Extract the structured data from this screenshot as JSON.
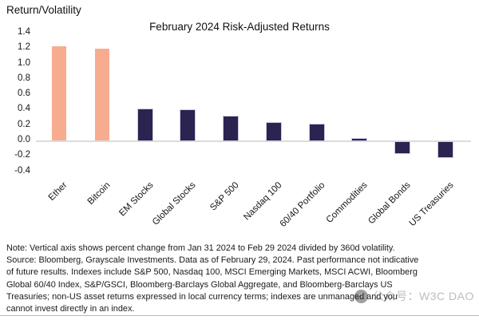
{
  "page": {
    "watermark_text": "公众号：W3C DAO",
    "note_lines": [
      "Note: Vertical axis shows percent change from Jan 31 2024 to Feb 29 2024 divided by 360d volatility.",
      "Source: Bloomberg, Grayscale Investments. Data as of February 29, 2024. Past performance not indicative",
      "of future results. Indexes include S&P 500, Nasdaq 100, MSCI Emerging Markets, MSCI ACWI, Bloomberg",
      "Global 60/40 Index, S&P/GSCI, Bloomberg-Barclays Global Aggregate, and Bloomberg-Barclays US",
      "Treasuries; non-US asset returns expressed in local currency terms; indexes are unmanaged and you",
      "cannot invest directly in an index."
    ]
  },
  "chart_data": {
    "type": "bar",
    "title": "February 2024 Risk-Adjusted Returns",
    "ylabel": "Return/Volatility",
    "xlabel": "",
    "ylim": [
      -0.4,
      1.4
    ],
    "ytick_step": 0.2,
    "grid": "off",
    "legend": "none",
    "categories": [
      "Ether",
      "Bitcoin",
      "EM Stocks",
      "Global Stocks",
      "S&P 500",
      "Nasdaq 100",
      "60/40 Portfolio",
      "Commodities",
      "Global Bonds",
      "US Treasuries"
    ],
    "values": [
      1.22,
      1.19,
      0.4,
      0.39,
      0.31,
      0.23,
      0.21,
      0.02,
      -0.15,
      -0.2
    ],
    "colors": [
      "#F7AC90",
      "#F7AC90",
      "#2B2350",
      "#2B2350",
      "#2B2350",
      "#2B2350",
      "#2B2350",
      "#2B2350",
      "#2B2350",
      "#2B2350"
    ],
    "accent_salmon": "#F7AC90",
    "accent_navy": "#2B2350",
    "navy_edge_color": "#CFC9DF",
    "axis_line_color": "#DCDCDC"
  }
}
